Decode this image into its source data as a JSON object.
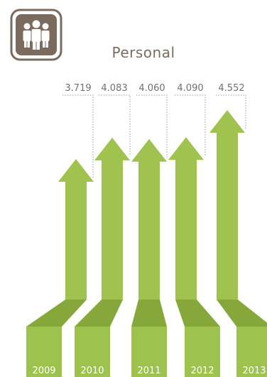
{
  "chart_data": {
    "type": "bar",
    "title": "Personal",
    "icon": "people-group-icon",
    "categories": [
      "2009",
      "2010",
      "2011",
      "2012",
      "2013"
    ],
    "value_labels": [
      "3.719",
      "4.083",
      "4.060",
      "4.090",
      "4.552"
    ],
    "values": [
      3719,
      4083,
      4060,
      4090,
      4552
    ],
    "colors": {
      "arrow": "#a0c24e",
      "arrow_dark": "#86a83a",
      "base": "#9dc24d",
      "icon": "#7b6b5e",
      "leader": "#9a9a9a"
    }
  }
}
